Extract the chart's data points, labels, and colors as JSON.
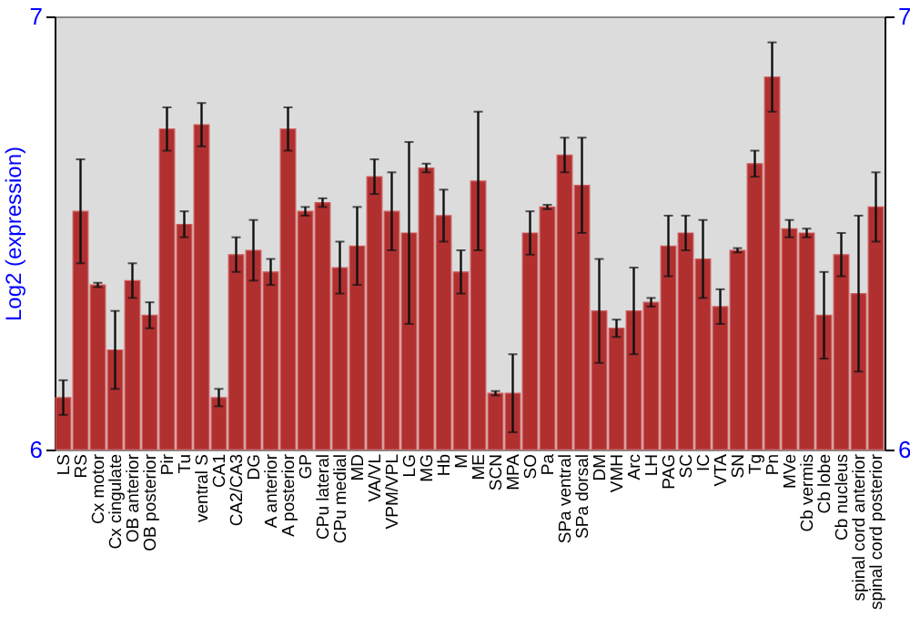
{
  "chart_data": {
    "type": "bar",
    "ylabel": "Log2 (expression)",
    "categories": [
      "LS",
      "RS",
      "Cx motor",
      "Cx cingulate",
      "OB anterior",
      "OB posterior",
      "Pir",
      "Tu",
      "ventral S",
      "CA1",
      "CA2/CA3",
      "DG",
      "A anterior",
      "A posterior",
      "GP",
      "CPu lateral",
      "CPu medial",
      "MD",
      "VA/VL",
      "VPM/VPL",
      "LG",
      "MG",
      "Hb",
      "M",
      "ME",
      "SCN",
      "MPA",
      "SO",
      "Pa",
      "SPa ventral",
      "SPa dorsal",
      "DM",
      "VMH",
      "Arc",
      "LH",
      "PAG",
      "SC",
      "IC",
      "VTA",
      "SN",
      "Tg",
      "Pn",
      "MVe",
      "Cb vermis",
      "Cb lobe",
      "Cb nucleus",
      "spinal cord anterior",
      "spinal cord posterior"
    ],
    "values": [
      6.12,
      6.55,
      6.38,
      6.23,
      6.39,
      6.31,
      6.74,
      6.52,
      6.75,
      6.12,
      6.45,
      6.46,
      6.41,
      6.74,
      6.55,
      6.57,
      6.42,
      6.47,
      6.63,
      6.55,
      6.5,
      6.65,
      6.54,
      6.41,
      6.62,
      6.13,
      6.13,
      6.5,
      6.56,
      6.68,
      6.61,
      6.32,
      6.28,
      6.32,
      6.34,
      6.47,
      6.5,
      6.44,
      6.33,
      6.46,
      6.66,
      6.86,
      6.51,
      6.5,
      6.31,
      6.45,
      6.36,
      6.56
    ],
    "errors": [
      0.04,
      0.12,
      0.005,
      0.09,
      0.04,
      0.03,
      0.05,
      0.03,
      0.05,
      0.02,
      0.04,
      0.07,
      0.03,
      0.05,
      0.01,
      0.01,
      0.06,
      0.09,
      0.04,
      0.09,
      0.21,
      0.01,
      0.06,
      0.05,
      0.16,
      0.005,
      0.09,
      0.05,
      0.005,
      0.04,
      0.11,
      0.12,
      0.02,
      0.1,
      0.01,
      0.07,
      0.04,
      0.09,
      0.04,
      0.005,
      0.03,
      0.08,
      0.02,
      0.01,
      0.1,
      0.05,
      0.18,
      0.08
    ],
    "color": "#b03030",
    "ylim": [
      6,
      7
    ],
    "yticks": [
      6,
      7
    ],
    "y2lim": [
      6,
      7
    ],
    "y2ticks": [
      6,
      7
    ],
    "grid": false
  }
}
